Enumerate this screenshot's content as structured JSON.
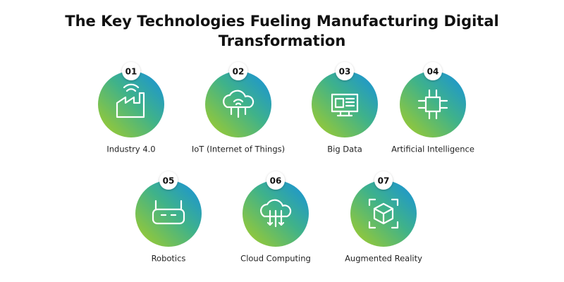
{
  "header": {
    "title_line1": "The Key Technologies Fueling Manufacturing Digital",
    "title_line2": "Transformation"
  },
  "items": [
    {
      "number": "01",
      "label": "Industry 4.0"
    },
    {
      "number": "02",
      "label": "IoT (Internet of Things)"
    },
    {
      "number": "03",
      "label": "Big Data"
    },
    {
      "number": "04",
      "label": "Artificial Intelligence"
    },
    {
      "number": "05",
      "label": "Robotics"
    },
    {
      "number": "06",
      "label": "Cloud Computing"
    },
    {
      "number": "07",
      "label": "Augmented Reality"
    }
  ]
}
